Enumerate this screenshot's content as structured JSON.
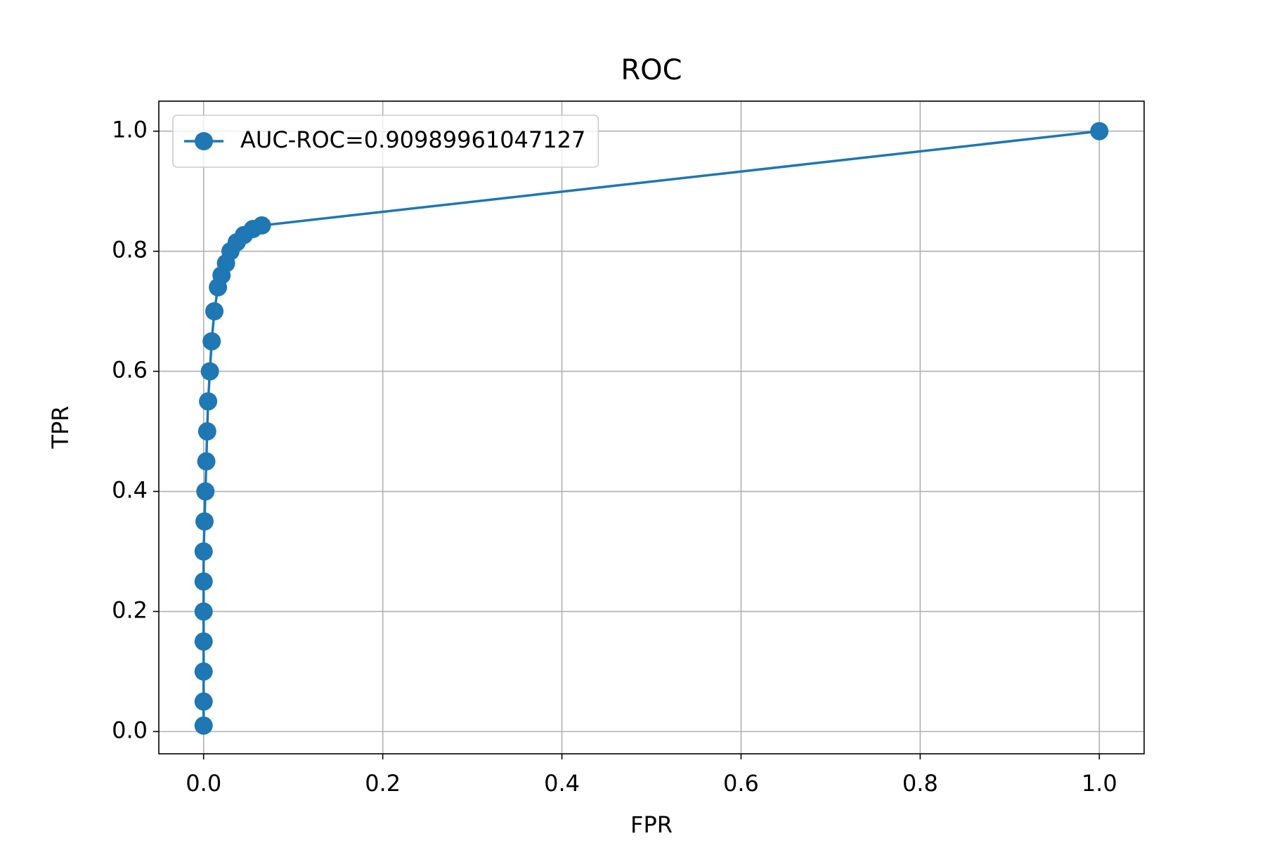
{
  "chart_data": {
    "type": "line",
    "title": "ROC",
    "x_label": "FPR",
    "y_label": "TPR",
    "x": [
      0,
      0,
      0,
      0,
      0,
      0,
      0,
      0.001,
      0.002,
      0.003,
      0.004,
      0.005,
      0.007,
      0.009,
      0.012,
      0.016,
      0.02,
      0.025,
      0.03,
      0.037,
      0.045,
      0.055,
      0.065,
      1.0
    ],
    "series": [
      {
        "name": "AUC-ROC=0.90989961047127",
        "color": "#1f77b4",
        "values": [
          0.01,
          0.05,
          0.1,
          0.15,
          0.2,
          0.25,
          0.3,
          0.35,
          0.4,
          0.45,
          0.5,
          0.55,
          0.6,
          0.65,
          0.7,
          0.74,
          0.76,
          0.78,
          0.8,
          0.815,
          0.827,
          0.837,
          0.843,
          1.0
        ]
      }
    ],
    "xlim": [
      -0.05,
      1.05
    ],
    "ylim": [
      -0.037,
      1.05
    ],
    "xticks": [
      {
        "value": 0,
        "label": "0.0"
      },
      0.2,
      0.4,
      0.6,
      0.8,
      {
        "value": 1,
        "label": "1.0"
      }
    ],
    "yticks": [
      {
        "value": 0,
        "label": "0.0"
      },
      0.2,
      0.4,
      0.6,
      0.8,
      {
        "value": 1,
        "label": "1.0"
      }
    ],
    "grid": true,
    "legend": "upper left"
  }
}
